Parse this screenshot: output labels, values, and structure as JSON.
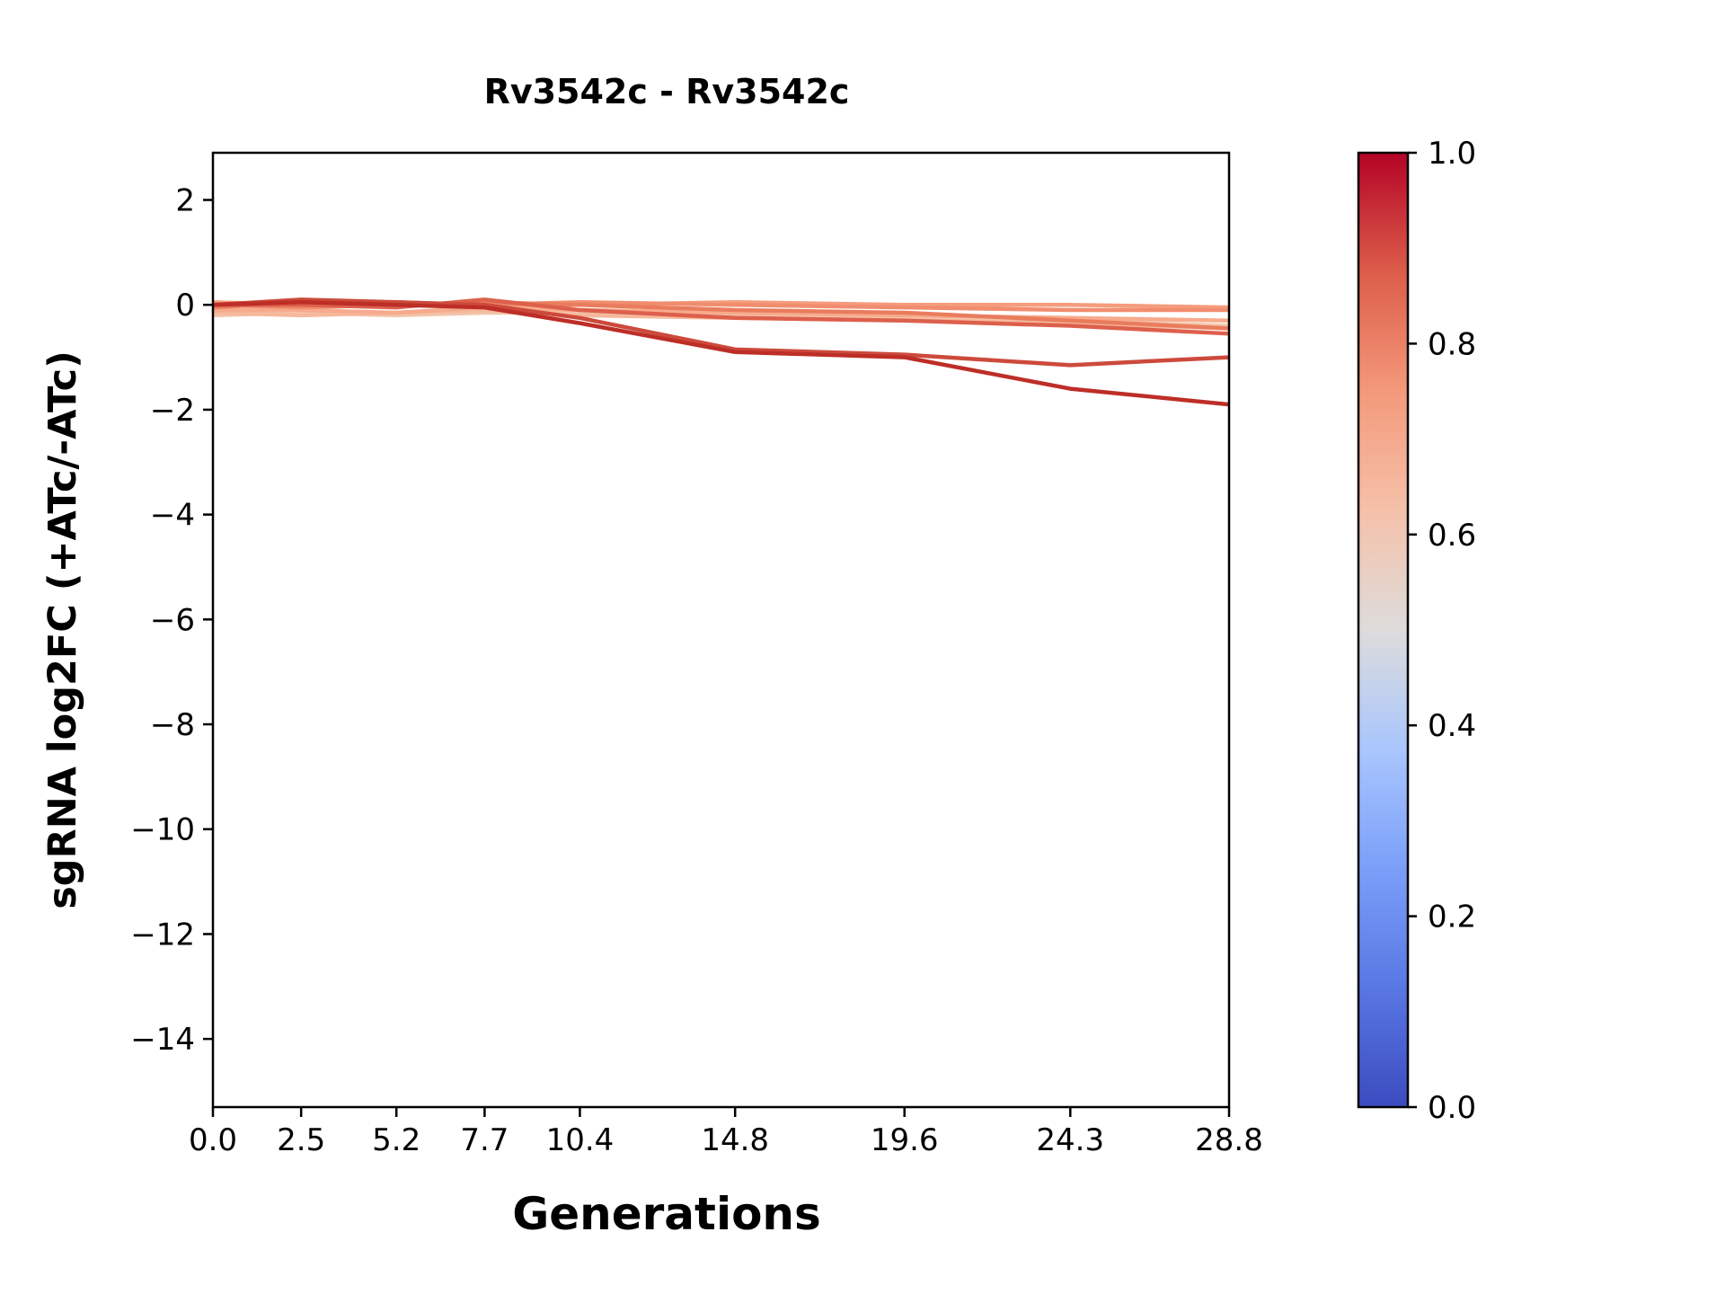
{
  "chart_data": {
    "type": "line",
    "title": "Rv3542c - Rv3542c",
    "xlabel": "Generations",
    "ylabel": "sgRNA log2FC (+ATc/-ATc)",
    "x": [
      0.0,
      2.5,
      5.2,
      7.7,
      10.4,
      14.8,
      19.6,
      24.3,
      28.8
    ],
    "xtick_labels": [
      "0.0",
      "2.5",
      "5.2",
      "7.7",
      "10.4",
      "14.8",
      "19.6",
      "24.3",
      "28.8"
    ],
    "yticks": [
      2,
      0,
      -2,
      -4,
      -6,
      -8,
      -10,
      -12,
      -14
    ],
    "ytick_labels": [
      "2",
      "0",
      "−2",
      "−4",
      "−6",
      "−8",
      "−10",
      "−12",
      "−14"
    ],
    "xlim": [
      0,
      28.8
    ],
    "ylim": [
      -15.3,
      2.9
    ],
    "grid": false,
    "legend": "none",
    "line_width": 4.5,
    "series": [
      {
        "colormap_value": 0.6,
        "color": "#f2c5ab",
        "y": [
          -0.2,
          -0.15,
          -0.2,
          -0.15,
          -0.15,
          -0.2,
          -0.25,
          -0.3,
          -0.4
        ]
      },
      {
        "colormap_value": 0.64,
        "color": "#f6b89b",
        "y": [
          -0.15,
          -0.2,
          -0.15,
          -0.1,
          -0.2,
          -0.25,
          -0.3,
          -0.35,
          -0.45
        ]
      },
      {
        "colormap_value": 0.68,
        "color": "#f7aa8c",
        "y": [
          -0.1,
          -0.1,
          -0.15,
          -0.05,
          -0.1,
          -0.15,
          -0.2,
          -0.25,
          -0.3
        ]
      },
      {
        "colormap_value": 0.72,
        "color": "#f59c7d",
        "y": [
          0.05,
          0.0,
          0.05,
          0.0,
          0.0,
          0.05,
          0.0,
          0.0,
          -0.05
        ]
      },
      {
        "colormap_value": 0.76,
        "color": "#f18d6f",
        "y": [
          0.0,
          -0.05,
          0.0,
          0.0,
          0.05,
          0.0,
          -0.05,
          -0.1,
          -0.1
        ]
      },
      {
        "colormap_value": 0.8,
        "color": "#e97c5d",
        "y": [
          -0.05,
          0.05,
          0.0,
          0.05,
          0.0,
          -0.1,
          -0.15,
          -0.3,
          -0.45
        ]
      },
      {
        "colormap_value": 0.85,
        "color": "#dd604c",
        "y": [
          0.0,
          0.0,
          -0.05,
          0.1,
          -0.1,
          -0.25,
          -0.3,
          -0.4,
          -0.55
        ]
      },
      {
        "colormap_value": 0.92,
        "color": "#cc4a3c",
        "y": [
          0.0,
          0.1,
          0.05,
          0.0,
          -0.25,
          -0.85,
          -0.95,
          -1.15,
          -1.0
        ]
      },
      {
        "colormap_value": 0.97,
        "color": "#bd2e27",
        "y": [
          0.0,
          0.05,
          0.0,
          -0.05,
          -0.35,
          -0.9,
          -1.0,
          -1.6,
          -1.9
        ]
      }
    ],
    "colorbar": {
      "colormap": "coolwarm",
      "min": 0.0,
      "max": 1.0,
      "tick_labels": [
        "0.0",
        "0.2",
        "0.4",
        "0.6",
        "0.8",
        "1.0"
      ],
      "gradient_top_to_bottom": [
        {
          "offset": 0.0,
          "color": "#b40426"
        },
        {
          "offset": 0.125,
          "color": "#dc5d4a"
        },
        {
          "offset": 0.25,
          "color": "#f4997b"
        },
        {
          "offset": 0.375,
          "color": "#f5c1a9"
        },
        {
          "offset": 0.5,
          "color": "#dddcdb"
        },
        {
          "offset": 0.625,
          "color": "#a9c6fd"
        },
        {
          "offset": 0.75,
          "color": "#7b9ff9"
        },
        {
          "offset": 0.875,
          "color": "#5977e3"
        },
        {
          "offset": 1.0,
          "color": "#3b4cc0"
        }
      ]
    }
  }
}
